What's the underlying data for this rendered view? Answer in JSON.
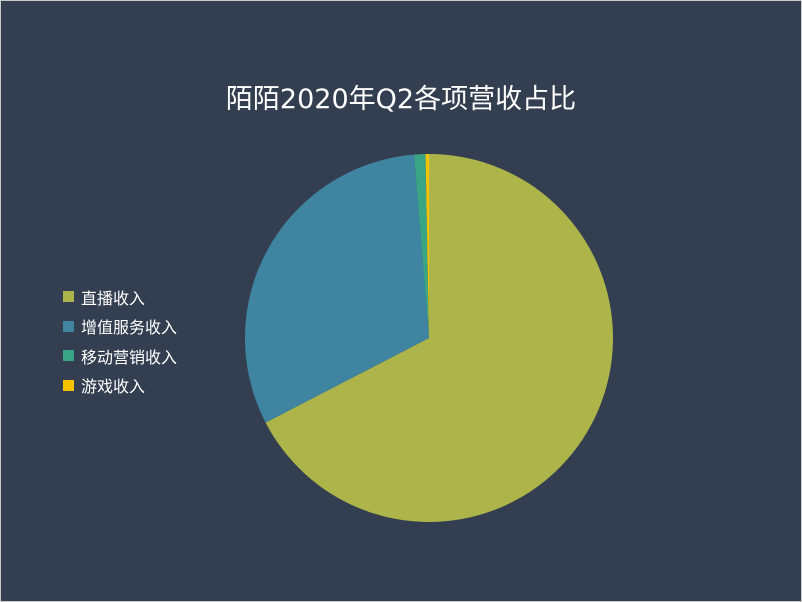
{
  "chart_data": {
    "type": "pie",
    "title": "陌陌2020年Q2各项营收占比",
    "categories": [
      "直播收入",
      "增值服务收入",
      "移动营销收入",
      "游戏收入"
    ],
    "values": [
      67.4,
      31.3,
      1.0,
      0.3
    ],
    "unit": "%",
    "colors": [
      "#adb54a",
      "#3f84a0",
      "#3aa584",
      "#f5c200"
    ],
    "start_angle": "12 o'clock",
    "direction": "clockwise",
    "legend_position": "left"
  },
  "background_color": "#333e50"
}
